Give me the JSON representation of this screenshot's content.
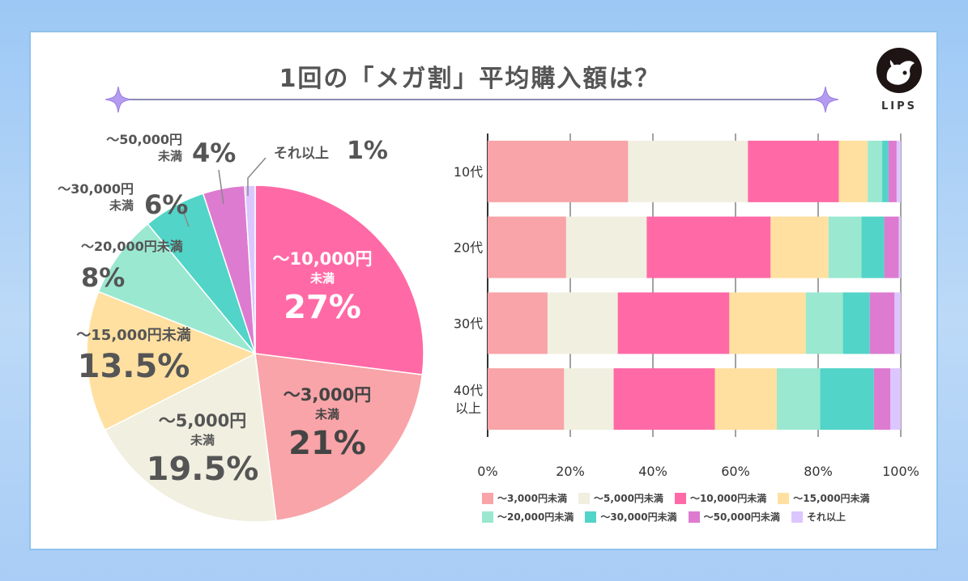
{
  "title": "1回の「メガ割」平均購入額は？",
  "logo_text": "LIPS",
  "colors": {
    "c1": "#f8a4a8",
    "c2": "#f1efe0",
    "c3": "#ff6aa6",
    "c4": "#ffe0a0",
    "c5": "#9ae8d0",
    "c6": "#52d4c8",
    "c7": "#dd7bd0",
    "c8": "#dcc6ff"
  },
  "chart_data": [
    {
      "type": "pie",
      "slices": [
        {
          "name": "〜10,000円未満",
          "name_line1": "〜10,000円",
          "name_line2": "未満",
          "value": 27,
          "label": "27%",
          "color": "#ff6aa6"
        },
        {
          "name": "〜3,000円未満",
          "name_line1": "〜3,000円",
          "name_line2": "未満",
          "value": 21,
          "label": "21%",
          "color": "#f8a4a8"
        },
        {
          "name": "〜5,000円未満",
          "name_line1": "〜5,000円",
          "name_line2": "未満",
          "value": 19.5,
          "label": "19.5%",
          "color": "#f1efe0"
        },
        {
          "name": "〜15,000円未満",
          "name_line1": "〜15,000円未満",
          "name_line2": "",
          "value": 13.5,
          "label": "13.5%",
          "color": "#ffe0a0"
        },
        {
          "name": "〜20,000円未満",
          "name_line1": "〜20,000円未満",
          "name_line2": "",
          "value": 8,
          "label": "8%",
          "color": "#9ae8d0"
        },
        {
          "name": "〜30,000円未満",
          "name_line1": "〜30,000円",
          "name_line2": "未満",
          "value": 6,
          "label": "6%",
          "color": "#52d4c8"
        },
        {
          "name": "〜50,000円未満",
          "name_line1": "〜50,000円",
          "name_line2": "未満",
          "value": 4,
          "label": "4%",
          "color": "#dd7bd0"
        },
        {
          "name": "それ以上",
          "name_line1": "それ以上",
          "name_line2": "",
          "value": 1,
          "label": "1%",
          "color": "#dcc6ff"
        }
      ]
    },
    {
      "type": "bar",
      "orientation": "horizontal",
      "stacked": true,
      "categories": [
        "10代",
        "20代",
        "30代",
        "40代\n以上"
      ],
      "xlim": [
        0,
        100
      ],
      "xticks": [
        "0%",
        "20%",
        "40%",
        "60%",
        "80%",
        "100%"
      ],
      "grid": true,
      "legend": "bottom",
      "series": [
        {
          "name": "〜3,000円未満",
          "color": "#f8a4a8",
          "values": [
            34,
            19,
            14.5,
            18.5
          ]
        },
        {
          "name": "〜5,000円未満",
          "color": "#f1efe0",
          "values": [
            29,
            19.5,
            17,
            12
          ]
        },
        {
          "name": "〜10,000円未満",
          "color": "#ff6aa6",
          "values": [
            22,
            30,
            27,
            24.5
          ]
        },
        {
          "name": "〜15,000円未満",
          "color": "#ffe0a0",
          "values": [
            7,
            14,
            18.5,
            15
          ]
        },
        {
          "name": "〜20,000円未満",
          "color": "#9ae8d0",
          "values": [
            3.5,
            8,
            9,
            10.5
          ]
        },
        {
          "name": "〜30,000円未満",
          "color": "#52d4c8",
          "values": [
            1.5,
            5.5,
            6.5,
            13
          ]
        },
        {
          "name": "〜50,000円未満",
          "color": "#dd7bd0",
          "values": [
            2,
            3.5,
            6,
            4
          ]
        },
        {
          "name": "それ以上",
          "color": "#dcc6ff",
          "values": [
            1,
            0.5,
            1.5,
            2.5
          ]
        }
      ]
    }
  ]
}
